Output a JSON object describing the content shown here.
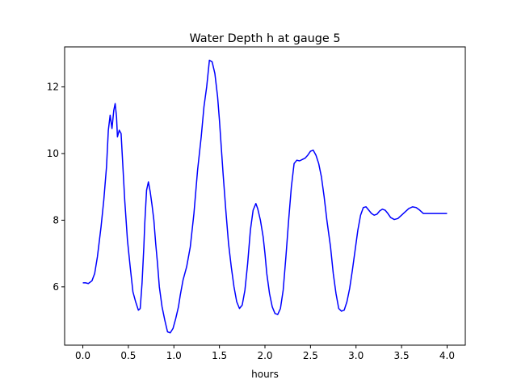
{
  "chart_data": {
    "type": "line",
    "title": "Water Depth h at gauge 5",
    "xlabel": "hours",
    "ylabel": "",
    "xlim": [
      -0.2,
      4.2
    ],
    "ylim": [
      4.25,
      13.2
    ],
    "xticks": [
      0.0,
      0.5,
      1.0,
      1.5,
      2.0,
      2.5,
      3.0,
      3.5,
      4.0
    ],
    "xtick_labels": [
      "0.0",
      "0.5",
      "1.0",
      "1.5",
      "2.0",
      "2.5",
      "3.0",
      "3.5",
      "4.0"
    ],
    "yticks": [
      6,
      8,
      10,
      12
    ],
    "ytick_labels": [
      "6",
      "8",
      "10",
      "12"
    ],
    "grid": false,
    "series": [
      {
        "color": "#0000ff",
        "x": [
          0.0,
          0.03,
          0.06,
          0.1,
          0.13,
          0.16,
          0.2,
          0.23,
          0.26,
          0.28,
          0.3,
          0.32,
          0.34,
          0.355,
          0.37,
          0.38,
          0.4,
          0.42,
          0.44,
          0.46,
          0.49,
          0.52,
          0.55,
          0.58,
          0.61,
          0.63,
          0.65,
          0.67,
          0.68,
          0.7,
          0.72,
          0.74,
          0.76,
          0.78,
          0.8,
          0.82,
          0.84,
          0.87,
          0.9,
          0.93,
          0.96,
          0.99,
          1.02,
          1.05,
          1.07,
          1.1,
          1.14,
          1.18,
          1.22,
          1.26,
          1.3,
          1.33,
          1.36,
          1.39,
          1.42,
          1.45,
          1.48,
          1.5,
          1.52,
          1.54,
          1.57,
          1.6,
          1.63,
          1.66,
          1.69,
          1.72,
          1.75,
          1.78,
          1.81,
          1.84,
          1.87,
          1.9,
          1.92,
          1.95,
          1.98,
          2.0,
          2.02,
          2.05,
          2.08,
          2.11,
          2.14,
          2.17,
          2.2,
          2.23,
          2.26,
          2.29,
          2.32,
          2.35,
          2.38,
          2.41,
          2.44,
          2.47,
          2.5,
          2.53,
          2.56,
          2.59,
          2.62,
          2.65,
          2.68,
          2.72,
          2.75,
          2.78,
          2.81,
          2.84,
          2.87,
          2.9,
          2.93,
          2.96,
          2.99,
          3.02,
          3.05,
          3.08,
          3.11,
          3.14,
          3.17,
          3.2,
          3.23,
          3.26,
          3.29,
          3.32,
          3.35,
          3.38,
          3.42,
          3.46,
          3.5,
          3.54,
          3.58,
          3.62,
          3.66,
          3.7,
          3.74,
          3.78,
          3.82,
          3.86,
          3.9,
          3.94,
          3.97,
          4.0
        ],
        "y": [
          6.12,
          6.12,
          6.1,
          6.18,
          6.4,
          6.9,
          7.8,
          8.6,
          9.6,
          10.7,
          11.15,
          10.75,
          11.3,
          11.5,
          11.1,
          10.5,
          10.7,
          10.6,
          9.6,
          8.6,
          7.4,
          6.6,
          5.85,
          5.55,
          5.3,
          5.35,
          6.1,
          7.2,
          7.9,
          8.9,
          9.15,
          8.85,
          8.45,
          8.0,
          7.3,
          6.7,
          6.0,
          5.4,
          5.0,
          4.65,
          4.62,
          4.75,
          5.05,
          5.4,
          5.75,
          6.2,
          6.6,
          7.2,
          8.2,
          9.5,
          10.5,
          11.4,
          12.0,
          12.8,
          12.75,
          12.4,
          11.7,
          11.0,
          10.2,
          9.4,
          8.3,
          7.3,
          6.6,
          6.0,
          5.55,
          5.35,
          5.45,
          5.9,
          6.7,
          7.7,
          8.3,
          8.5,
          8.35,
          8.0,
          7.5,
          7.0,
          6.4,
          5.8,
          5.4,
          5.2,
          5.17,
          5.35,
          5.9,
          6.9,
          8.0,
          9.0,
          9.7,
          9.8,
          9.78,
          9.82,
          9.86,
          9.95,
          10.07,
          10.1,
          9.95,
          9.7,
          9.3,
          8.7,
          8.0,
          7.2,
          6.4,
          5.8,
          5.35,
          5.27,
          5.3,
          5.55,
          5.95,
          6.5,
          7.1,
          7.7,
          8.15,
          8.38,
          8.4,
          8.3,
          8.2,
          8.15,
          8.18,
          8.28,
          8.33,
          8.3,
          8.2,
          8.08,
          8.02,
          8.05,
          8.15,
          8.25,
          8.35,
          8.4,
          8.38,
          8.3,
          8.2,
          8.2,
          8.2,
          8.2,
          8.2,
          8.2,
          8.2,
          8.2
        ]
      }
    ]
  }
}
